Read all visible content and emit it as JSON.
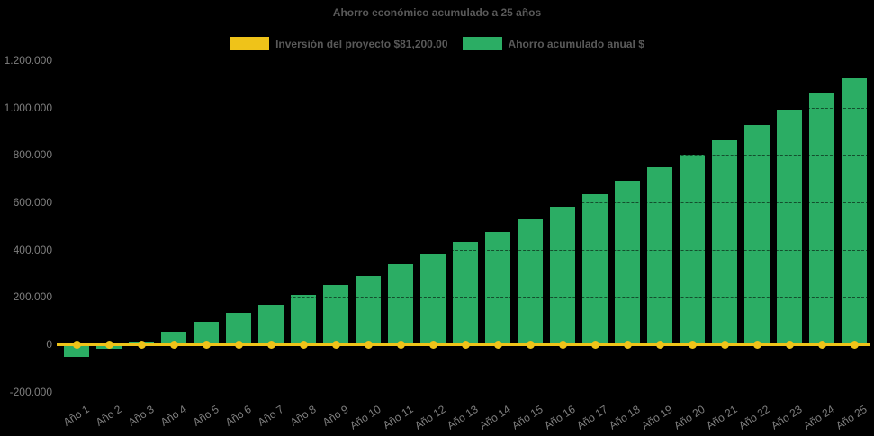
{
  "title": "Ahorro económico acumulado a 25 años",
  "colors": {
    "background": "#000000",
    "bar_green": "#2BAD64",
    "line_yellow": "#EFC319",
    "title_text": "#595959",
    "axis_text": "#7F7F7F",
    "gridline": "rgba(0,0,0,0.55)"
  },
  "legend": {
    "items": [
      {
        "label": "Inversión del proyecto $81,200.00",
        "color": "#EFC319",
        "swatch": "yellow-rect"
      },
      {
        "label": "Ahorro acumulado anual $",
        "color": "#2BAD64",
        "swatch": "green-rect"
      }
    ]
  },
  "y_axis_labels": [
    "1.200.000",
    "1.000.000",
    "800.000",
    "600.000",
    "400.000",
    "200.000",
    "0",
    "-200.000"
  ],
  "chart_data": {
    "type": "bar",
    "title": "Ahorro económico acumulado a 25 años",
    "categories": [
      "Año 1",
      "Año 2",
      "Año 3",
      "Año 4",
      "Año 5",
      "Año 6",
      "Año 7",
      "Año 8",
      "Año 9",
      "Año 10",
      "Año 11",
      "Año 12",
      "Año 13",
      "Año 14",
      "Año 15",
      "Año 16",
      "Año 17",
      "Año 18",
      "Año 19",
      "Año 20",
      "Año 21",
      "Año 22",
      "Año 23",
      "Año 24",
      "Año 25"
    ],
    "series": [
      {
        "name": "Inversión del proyecto $81,200.00",
        "type": "line",
        "color": "#EFC319",
        "marker": "circle",
        "constant_value": 0
      },
      {
        "name": "Ahorro acumulado anual $",
        "type": "bar",
        "color": "#2BAD64",
        "values": [
          -55000,
          -20000,
          12000,
          52000,
          95000,
          133000,
          167000,
          209000,
          251000,
          289000,
          338000,
          384000,
          433000,
          475000,
          528000,
          581000,
          634000,
          691000,
          748000,
          801000,
          862000,
          926000,
          991000,
          1059000,
          1124000
        ]
      }
    ],
    "ylim": [
      -200000,
      1200000
    ],
    "ytick_step": 200000,
    "ytick_format": "es-dot-thousands",
    "xlabel": "",
    "ylabel": "",
    "x_tick_rotation_deg": -33,
    "grid": "horizontal-dashed-dark-over-bars",
    "legend_position": "top-center",
    "background": "black"
  }
}
